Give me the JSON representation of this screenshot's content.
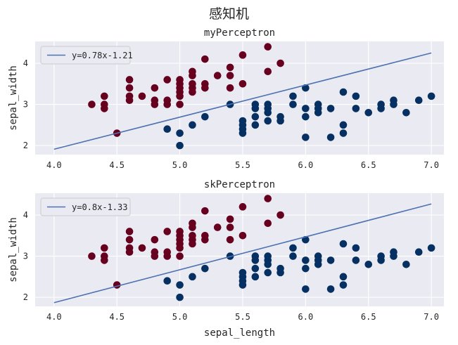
{
  "figure": {
    "suptitle": "感知机",
    "background": "#ffffff",
    "axes_facecolor": "#eaeaf2",
    "grid_color": "#ffffff",
    "line_color": "#4c72b0",
    "class_colors": {
      "positive": "#67001f",
      "negative": "#053061"
    }
  },
  "chart_data": [
    {
      "type": "scatter",
      "title": "myPerceptron",
      "xlabel": "",
      "ylabel": "sepal_width",
      "xlim": [
        3.85,
        7.1
      ],
      "ylim": [
        1.78,
        4.53
      ],
      "xticks": [
        4.0,
        4.5,
        5.0,
        5.5,
        6.0,
        6.5,
        7.0
      ],
      "xtick_labels": [
        "4.0",
        "4.5",
        "5.0",
        "5.5",
        "6.0",
        "6.5",
        "7.0"
      ],
      "yticks": [
        2,
        3,
        4
      ],
      "ytick_labels": [
        "2",
        "3",
        "4"
      ],
      "grid": true,
      "legend_position": "top-left",
      "fit_line": {
        "label": "y=0.78x-1.21",
        "slope": 0.78,
        "intercept": -1.21,
        "x_range": [
          4.0,
          7.0
        ]
      },
      "series": [
        {
          "class": "positive",
          "points": [
            [
              4.3,
              3.0
            ],
            [
              4.4,
              2.9
            ],
            [
              4.4,
              3.0
            ],
            [
              4.4,
              3.2
            ],
            [
              4.5,
              2.3
            ],
            [
              4.6,
              3.1
            ],
            [
              4.6,
              3.2
            ],
            [
              4.6,
              3.4
            ],
            [
              4.6,
              3.6
            ],
            [
              4.7,
              3.2
            ],
            [
              4.8,
              3.0
            ],
            [
              4.8,
              3.1
            ],
            [
              4.8,
              3.4
            ],
            [
              4.9,
              3.0
            ],
            [
              4.9,
              3.1
            ],
            [
              4.9,
              3.6
            ],
            [
              5.0,
              3.0
            ],
            [
              5.0,
              3.2
            ],
            [
              5.0,
              3.3
            ],
            [
              5.0,
              3.4
            ],
            [
              5.0,
              3.5
            ],
            [
              5.0,
              3.6
            ],
            [
              5.1,
              3.3
            ],
            [
              5.1,
              3.4
            ],
            [
              5.1,
              3.5
            ],
            [
              5.1,
              3.7
            ],
            [
              5.1,
              3.8
            ],
            [
              5.2,
              3.4
            ],
            [
              5.2,
              3.5
            ],
            [
              5.2,
              4.1
            ],
            [
              5.3,
              3.7
            ],
            [
              5.4,
              3.4
            ],
            [
              5.4,
              3.7
            ],
            [
              5.4,
              3.9
            ],
            [
              5.5,
              3.5
            ],
            [
              5.5,
              4.2
            ],
            [
              5.7,
              3.8
            ],
            [
              5.7,
              4.4
            ],
            [
              5.8,
              4.0
            ]
          ]
        },
        {
          "class": "negative",
          "points": [
            [
              4.9,
              2.4
            ],
            [
              5.0,
              2.0
            ],
            [
              5.0,
              2.3
            ],
            [
              5.1,
              2.5
            ],
            [
              5.2,
              2.7
            ],
            [
              5.4,
              3.0
            ],
            [
              5.5,
              2.3
            ],
            [
              5.5,
              2.4
            ],
            [
              5.5,
              2.5
            ],
            [
              5.5,
              2.6
            ],
            [
              5.6,
              2.5
            ],
            [
              5.6,
              2.7
            ],
            [
              5.6,
              2.9
            ],
            [
              5.6,
              3.0
            ],
            [
              5.7,
              2.6
            ],
            [
              5.7,
              2.8
            ],
            [
              5.7,
              2.9
            ],
            [
              5.7,
              3.0
            ],
            [
              5.8,
              2.6
            ],
            [
              5.8,
              2.7
            ],
            [
              5.9,
              3.0
            ],
            [
              5.9,
              3.2
            ],
            [
              6.0,
              2.2
            ],
            [
              6.0,
              2.7
            ],
            [
              6.0,
              2.9
            ],
            [
              6.0,
              3.4
            ],
            [
              6.1,
              2.8
            ],
            [
              6.1,
              2.9
            ],
            [
              6.1,
              3.0
            ],
            [
              6.2,
              2.2
            ],
            [
              6.2,
              2.9
            ],
            [
              6.3,
              2.3
            ],
            [
              6.3,
              2.5
            ],
            [
              6.3,
              3.3
            ],
            [
              6.4,
              2.9
            ],
            [
              6.4,
              3.2
            ],
            [
              6.5,
              2.8
            ],
            [
              6.6,
              2.9
            ],
            [
              6.6,
              3.0
            ],
            [
              6.7,
              3.0
            ],
            [
              6.7,
              3.1
            ],
            [
              6.8,
              2.8
            ],
            [
              6.9,
              3.1
            ],
            [
              7.0,
              3.2
            ]
          ]
        }
      ]
    },
    {
      "type": "scatter",
      "title": "skPerceptron",
      "xlabel": "sepal_length",
      "ylabel": "sepal_width",
      "xlim": [
        3.85,
        7.1
      ],
      "ylim": [
        1.78,
        4.53
      ],
      "xticks": [
        4.0,
        4.5,
        5.0,
        5.5,
        6.0,
        6.5,
        7.0
      ],
      "xtick_labels": [
        "4.0",
        "4.5",
        "5.0",
        "5.5",
        "6.0",
        "6.5",
        "7.0"
      ],
      "yticks": [
        2,
        3,
        4
      ],
      "ytick_labels": [
        "2",
        "3",
        "4"
      ],
      "grid": true,
      "legend_position": "top-left",
      "fit_line": {
        "label": "y=0.8x-1.33",
        "slope": 0.8,
        "intercept": -1.33,
        "x_range": [
          4.0,
          7.0
        ]
      },
      "series": [
        {
          "class": "positive",
          "points": [
            [
              4.3,
              3.0
            ],
            [
              4.4,
              2.9
            ],
            [
              4.4,
              3.0
            ],
            [
              4.4,
              3.2
            ],
            [
              4.5,
              2.3
            ],
            [
              4.6,
              3.1
            ],
            [
              4.6,
              3.2
            ],
            [
              4.6,
              3.4
            ],
            [
              4.6,
              3.6
            ],
            [
              4.7,
              3.2
            ],
            [
              4.8,
              3.0
            ],
            [
              4.8,
              3.1
            ],
            [
              4.8,
              3.4
            ],
            [
              4.9,
              3.0
            ],
            [
              4.9,
              3.1
            ],
            [
              4.9,
              3.6
            ],
            [
              5.0,
              3.0
            ],
            [
              5.0,
              3.2
            ],
            [
              5.0,
              3.3
            ],
            [
              5.0,
              3.4
            ],
            [
              5.0,
              3.5
            ],
            [
              5.0,
              3.6
            ],
            [
              5.1,
              3.3
            ],
            [
              5.1,
              3.4
            ],
            [
              5.1,
              3.5
            ],
            [
              5.1,
              3.7
            ],
            [
              5.1,
              3.8
            ],
            [
              5.2,
              3.4
            ],
            [
              5.2,
              3.5
            ],
            [
              5.2,
              4.1
            ],
            [
              5.3,
              3.7
            ],
            [
              5.4,
              3.4
            ],
            [
              5.4,
              3.7
            ],
            [
              5.4,
              3.9
            ],
            [
              5.5,
              3.5
            ],
            [
              5.5,
              4.2
            ],
            [
              5.7,
              3.8
            ],
            [
              5.7,
              4.4
            ],
            [
              5.8,
              4.0
            ]
          ]
        },
        {
          "class": "negative",
          "points": [
            [
              4.9,
              2.4
            ],
            [
              5.0,
              2.0
            ],
            [
              5.0,
              2.3
            ],
            [
              5.1,
              2.5
            ],
            [
              5.2,
              2.7
            ],
            [
              5.4,
              3.0
            ],
            [
              5.5,
              2.3
            ],
            [
              5.5,
              2.4
            ],
            [
              5.5,
              2.5
            ],
            [
              5.5,
              2.6
            ],
            [
              5.6,
              2.5
            ],
            [
              5.6,
              2.7
            ],
            [
              5.6,
              2.9
            ],
            [
              5.6,
              3.0
            ],
            [
              5.7,
              2.6
            ],
            [
              5.7,
              2.8
            ],
            [
              5.7,
              2.9
            ],
            [
              5.7,
              3.0
            ],
            [
              5.8,
              2.6
            ],
            [
              5.8,
              2.7
            ],
            [
              5.9,
              3.0
            ],
            [
              5.9,
              3.2
            ],
            [
              6.0,
              2.2
            ],
            [
              6.0,
              2.7
            ],
            [
              6.0,
              2.9
            ],
            [
              6.0,
              3.4
            ],
            [
              6.1,
              2.8
            ],
            [
              6.1,
              2.9
            ],
            [
              6.1,
              3.0
            ],
            [
              6.2,
              2.2
            ],
            [
              6.2,
              2.9
            ],
            [
              6.3,
              2.3
            ],
            [
              6.3,
              2.5
            ],
            [
              6.3,
              3.3
            ],
            [
              6.4,
              2.9
            ],
            [
              6.4,
              3.2
            ],
            [
              6.5,
              2.8
            ],
            [
              6.6,
              2.9
            ],
            [
              6.6,
              3.0
            ],
            [
              6.7,
              3.0
            ],
            [
              6.7,
              3.1
            ],
            [
              6.8,
              2.8
            ],
            [
              6.9,
              3.1
            ],
            [
              7.0,
              3.2
            ]
          ]
        }
      ]
    }
  ]
}
